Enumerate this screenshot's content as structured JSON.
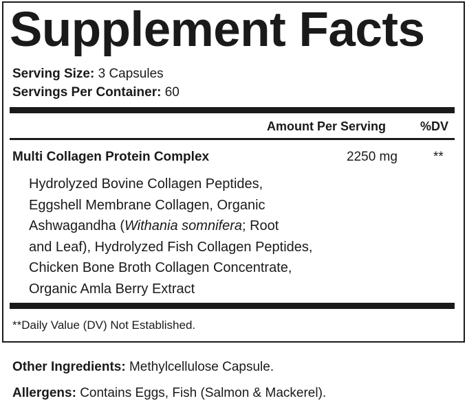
{
  "title": "Supplement Facts",
  "serving_size": {
    "label": "Serving Size:",
    "value": "3 Capsules"
  },
  "servings_per_container": {
    "label": "Servings Per Container:",
    "value": "60"
  },
  "header": {
    "amount": "Amount Per Serving",
    "dv": "%DV"
  },
  "ingredient": {
    "name": "Multi Collagen Protein Complex",
    "amount": "2250 mg",
    "dv": "**"
  },
  "sub_ingredients": {
    "line1": "Hydrolyzed Bovine Collagen Peptides,",
    "line2": "Eggshell Membrane Collagen, Organic",
    "line3a": "Ashwagandha (",
    "line3b": "Withania somnifera",
    "line3c": "; Root",
    "line4": "and Leaf), Hydrolyzed Fish Collagen Peptides,",
    "line5": "Chicken Bone Broth Collagen Concentrate,",
    "line6": "Organic Amla Berry Extract"
  },
  "footnote": "**Daily Value (DV) Not Established.",
  "other_ingredients": {
    "label": "Other Ingredients:",
    "value": "Methylcellulose Capsule."
  },
  "allergens": {
    "label": "Allergens:",
    "value": "Contains Eggs, Fish (Salmon & Mackerel)."
  }
}
